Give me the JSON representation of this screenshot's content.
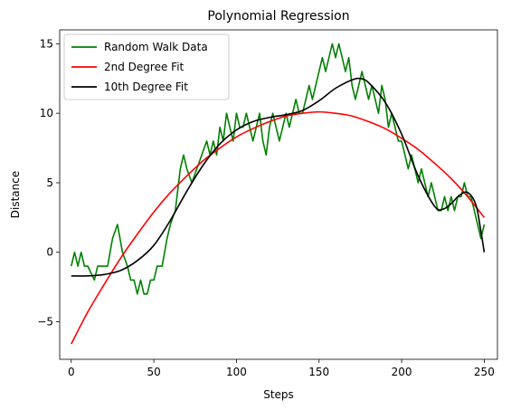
{
  "chart_data": {
    "type": "line",
    "title": "Polynomial Regression",
    "xlabel": "Steps",
    "ylabel": "Distance",
    "xlim": [
      -7,
      258
    ],
    "ylim": [
      -7.7,
      16
    ],
    "xticks": [
      0,
      50,
      100,
      150,
      200,
      250
    ],
    "yticks": [
      -5,
      0,
      5,
      10,
      15
    ],
    "xtick_labels": [
      "0",
      "50",
      "100",
      "150",
      "200",
      "250"
    ],
    "ytick_labels": [
      "−5",
      "0",
      "5",
      "10",
      "15"
    ],
    "grid": false,
    "legend": "top-left",
    "series": [
      {
        "name": "Random Walk Data",
        "color": "#008000",
        "style": "step-walk",
        "x": [
          0,
          2,
          4,
          6,
          8,
          10,
          14,
          16,
          18,
          22,
          25,
          28,
          31,
          34,
          36,
          38,
          40,
          42,
          44,
          46,
          48,
          50,
          52,
          55,
          58,
          60,
          63,
          66,
          68,
          70,
          73,
          76,
          79,
          82,
          84,
          86,
          88,
          90,
          92,
          94,
          96,
          98,
          100,
          102,
          104,
          106,
          108,
          110,
          112,
          114,
          116,
          118,
          120,
          122,
          124,
          126,
          128,
          130,
          132,
          134,
          136,
          138,
          140,
          142,
          144,
          146,
          148,
          150,
          152,
          154,
          156,
          158,
          160,
          162,
          164,
          166,
          168,
          170,
          172,
          174,
          176,
          178,
          180,
          182,
          184,
          186,
          188,
          190,
          192,
          194,
          196,
          198,
          200,
          202,
          204,
          206,
          208,
          210,
          212,
          214,
          216,
          218,
          220,
          222,
          224,
          226,
          228,
          230,
          232,
          234,
          236,
          238,
          240,
          242,
          244,
          246,
          248,
          250
        ],
        "y": [
          -1,
          0,
          -1,
          0,
          -1,
          -1,
          -2,
          -1,
          -1,
          -1,
          1,
          2,
          0,
          -1,
          -2,
          -2,
          -3,
          -2,
          -3,
          -3,
          -2,
          -2,
          -1,
          -1,
          1,
          2,
          3,
          6,
          7,
          6,
          5,
          6,
          7,
          8,
          7,
          8,
          7,
          9,
          8,
          10,
          9,
          8,
          10,
          9,
          9,
          10,
          9,
          8,
          9,
          10,
          8,
          7,
          9,
          10,
          9,
          8,
          9,
          10,
          9,
          10,
          11,
          10,
          10,
          11,
          12,
          11,
          12,
          13,
          14,
          13,
          14,
          15,
          14,
          15,
          14,
          13,
          14,
          12,
          11,
          12,
          13,
          12,
          11,
          12,
          11,
          10,
          12,
          11,
          9,
          10,
          9,
          8,
          8,
          7,
          6,
          7,
          6,
          5,
          6,
          5,
          4,
          5,
          4,
          3,
          3,
          4,
          3,
          4,
          3,
          4,
          4,
          5,
          4,
          4,
          3,
          2,
          1,
          2
        ]
      },
      {
        "name": "2nd Degree Fit",
        "color": "#ff0000",
        "style": "smooth",
        "x": [
          0,
          10,
          20,
          30,
          40,
          50,
          60,
          70,
          80,
          90,
          100,
          110,
          120,
          130,
          140,
          150,
          160,
          170,
          180,
          190,
          200,
          210,
          220,
          230,
          240,
          250
        ],
        "y": [
          -6.6,
          -4.3,
          -2.3,
          -0.4,
          1.3,
          2.9,
          4.3,
          5.5,
          6.6,
          7.5,
          8.3,
          8.9,
          9.4,
          9.8,
          10.0,
          10.1,
          10.0,
          9.8,
          9.4,
          8.9,
          8.2,
          7.4,
          6.4,
          5.3,
          4.0,
          2.5
        ]
      },
      {
        "name": "10th Degree Fit",
        "color": "#000000",
        "style": "smooth",
        "x": [
          0,
          10,
          20,
          30,
          40,
          50,
          60,
          70,
          80,
          90,
          100,
          110,
          120,
          130,
          140,
          150,
          160,
          170,
          175,
          180,
          190,
          200,
          210,
          220,
          225,
          230,
          235,
          240,
          245,
          248,
          250
        ],
        "y": [
          -1.7,
          -1.7,
          -1.6,
          -1.3,
          -0.6,
          0.5,
          2.3,
          4.4,
          6.3,
          7.8,
          8.8,
          9.4,
          9.7,
          9.9,
          10.2,
          10.9,
          11.8,
          12.4,
          12.5,
          12.2,
          10.8,
          8.5,
          5.5,
          3.3,
          3.1,
          3.5,
          4.1,
          4.3,
          3.4,
          1.5,
          0.0
        ]
      }
    ]
  }
}
